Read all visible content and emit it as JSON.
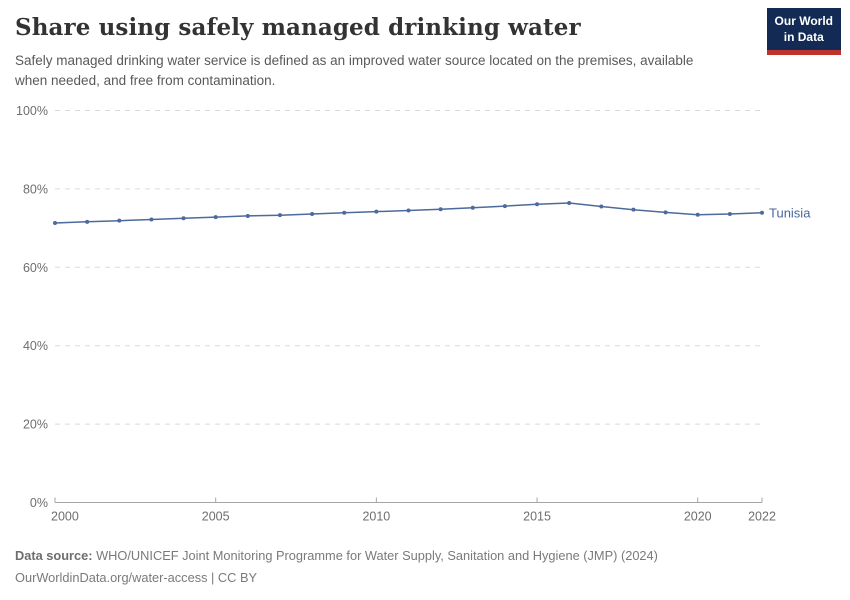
{
  "header": {
    "title": "Share using safely managed drinking water",
    "subtitle": "Safely managed drinking water service is defined as an improved water source located on the premises, available when needed, and free from contamination.",
    "logo": {
      "line1": "Our World",
      "line2": "in Data"
    }
  },
  "chart_data": {
    "type": "line",
    "title": "Share using safely managed drinking water",
    "x": [
      2000,
      2001,
      2002,
      2003,
      2004,
      2005,
      2006,
      2007,
      2008,
      2009,
      2010,
      2011,
      2012,
      2013,
      2014,
      2015,
      2016,
      2017,
      2018,
      2019,
      2020,
      2021,
      2022
    ],
    "series": [
      {
        "name": "Tunisia",
        "color": "#4c6a9c",
        "values": [
          71.3,
          71.6,
          71.9,
          72.2,
          72.5,
          72.8,
          73.1,
          73.3,
          73.6,
          73.9,
          74.2,
          74.5,
          74.8,
          75.2,
          75.6,
          76.1,
          76.4,
          75.5,
          74.7,
          74.0,
          73.4,
          73.6,
          73.9
        ]
      }
    ],
    "xlabel": "",
    "ylabel": "",
    "ylim": [
      0,
      100
    ],
    "yticks": [
      0,
      20,
      40,
      60,
      80,
      100
    ],
    "ytick_labels": [
      "0%",
      "20%",
      "40%",
      "60%",
      "80%",
      "100%"
    ],
    "xticks": [
      2000,
      2005,
      2010,
      2015,
      2020,
      2022
    ],
    "grid": "horizontal-dashed",
    "legend_position": "end-of-line-label",
    "end_label": "Tunisia"
  },
  "footer": {
    "source_label": "Data source:",
    "source_text": " WHO/UNICEF Joint Monitoring Programme for Water Supply, Sanitation and Hygiene (JMP) (2024)",
    "license_line": "OurWorldinData.org/water-access | CC BY"
  },
  "colors": {
    "line": "#4c6a9c",
    "entity_label": "#4a679b",
    "gridline": "#dadada",
    "axis": "#a5a5a5",
    "tick_label": "#6e6e6e",
    "logo_bg": "#122a54",
    "logo_stripe": "#be322d"
  }
}
